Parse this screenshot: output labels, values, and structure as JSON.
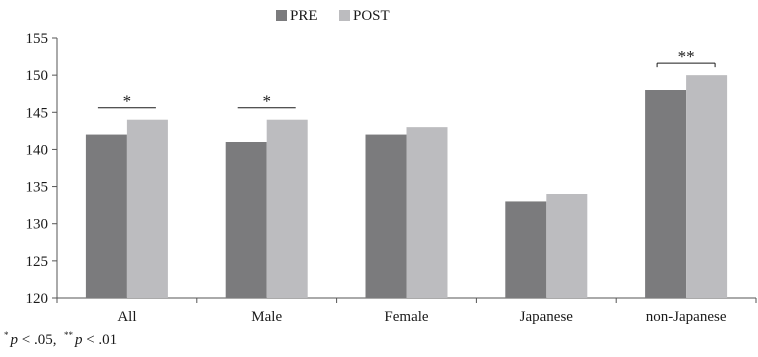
{
  "chart_data": {
    "type": "bar",
    "categories": [
      "All",
      "Male",
      "Female",
      "Japanese",
      "non-Japanese"
    ],
    "series": [
      {
        "name": "PRE",
        "values": [
          142,
          141,
          142,
          133,
          148
        ],
        "color": "#7b7b7d"
      },
      {
        "name": "POST",
        "values": [
          144,
          144,
          143,
          134,
          150
        ],
        "color": "#bcbcbf"
      }
    ],
    "ylim": [
      120,
      155
    ],
    "yticks": [
      120,
      125,
      130,
      135,
      140,
      145,
      150,
      155
    ],
    "grid": false,
    "legend": "top-center",
    "significance": [
      {
        "category": "All",
        "marker": "*"
      },
      {
        "category": "Male",
        "marker": "*"
      },
      {
        "category": "non-Japanese",
        "marker": "**"
      }
    ]
  },
  "footnote": {
    "mark1": "*",
    "p1": "p",
    "text1": " < .05,",
    "mark2": "**",
    "p2": "p",
    "text2": " < .01"
  }
}
